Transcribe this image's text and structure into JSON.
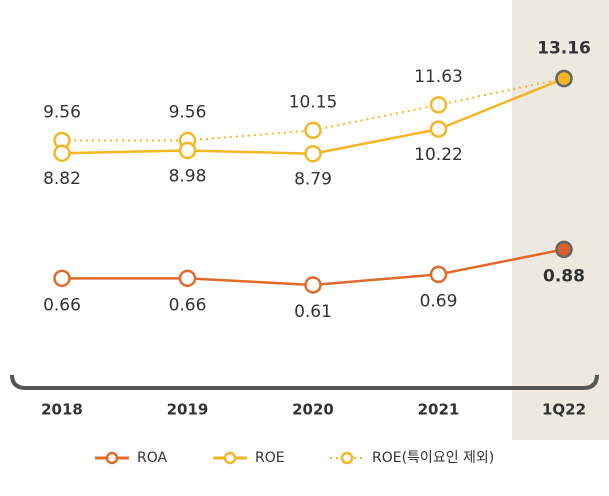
{
  "chart_data": {
    "type": "line",
    "categories": [
      "2018",
      "2019",
      "2020",
      "2021",
      "1Q22"
    ],
    "highlight_category": 4,
    "ylim": [
      -3.2,
      15.4
    ],
    "y2lim": [
      0.04,
      2.47
    ],
    "series": [
      {
        "name": "ROA",
        "color": "#e06a2a",
        "axis": "y2",
        "line_style": "solid",
        "values": [
          0.66,
          0.66,
          0.61,
          0.69,
          0.88
        ]
      },
      {
        "name": "ROE",
        "color": "#f5b625",
        "line_style": "solid",
        "values": [
          8.82,
          8.98,
          8.79,
          10.22,
          13.16
        ]
      },
      {
        "name": "ROE(특이요인 제외)",
        "color": "#f5b625",
        "line_style": "dotted",
        "values": [
          9.56,
          9.56,
          10.15,
          11.63,
          13.16
        ]
      }
    ]
  }
}
